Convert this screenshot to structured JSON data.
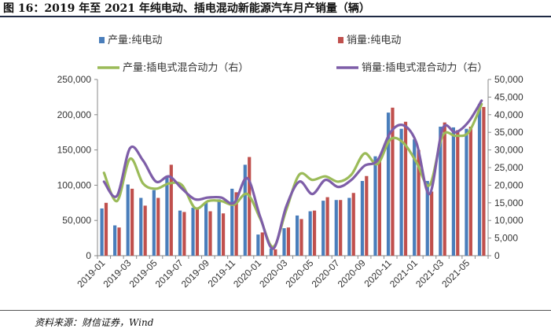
{
  "figure": {
    "title": "图 16：2019 年至 2021 年纯电动、插电混动新能源汽车月产销量（辆）",
    "source": "资料来源：财信证券，Wind"
  },
  "chart_data": {
    "type": "bar",
    "categories": [
      "2019-01",
      "2019-02",
      "2019-03",
      "2019-04",
      "2019-05",
      "2019-06",
      "2019-07",
      "2019-08",
      "2019-09",
      "2019-10",
      "2019-11",
      "2019-12",
      "2020-01",
      "2020-02",
      "2020-03",
      "2020-04",
      "2020-05",
      "2020-06",
      "2020-07",
      "2020-08",
      "2020-09",
      "2020-10",
      "2020-11",
      "2020-12",
      "2021-01",
      "2021-02",
      "2021-03",
      "2021-04",
      "2021-05",
      "2021-06"
    ],
    "x_tick_labels": [
      "2019-01",
      "2019-03",
      "2019-05",
      "2019-07",
      "2019-09",
      "2019-11",
      "2020-01",
      "2020-03",
      "2020-05",
      "2020-07",
      "2020-09",
      "2020-11",
      "2021-01",
      "2021-03",
      "2021-05"
    ],
    "series": [
      {
        "name": "产量:纯电动",
        "kind": "bar",
        "axis": "left",
        "color": "#4a7ebb",
        "values": [
          67000,
          43000,
          101000,
          82000,
          93000,
          113000,
          64000,
          68000,
          76000,
          80000,
          95000,
          129000,
          30000,
          10000,
          39000,
          57000,
          63000,
          78000,
          79000,
          82000,
          106000,
          141000,
          203000,
          180000,
          165000,
          106000,
          183000,
          182000,
          180000,
          215000
        ]
      },
      {
        "name": "销量:纯电动",
        "kind": "bar",
        "axis": "left",
        "color": "#c0504d",
        "values": [
          75000,
          40000,
          95000,
          71000,
          82000,
          129000,
          62000,
          68000,
          63000,
          60000,
          90000,
          140000,
          33000,
          9000,
          40000,
          52000,
          64000,
          83000,
          79000,
          89000,
          113000,
          135000,
          210000,
          190000,
          150000,
          91000,
          189000,
          178000,
          183000,
          211000
        ]
      },
      {
        "name": "产量:插电式混合动力（右）",
        "kind": "line",
        "axis": "right",
        "color": "#9bbb59",
        "values": [
          23500,
          15500,
          27500,
          20500,
          19000,
          20500,
          20000,
          13500,
          15500,
          15500,
          14500,
          17500,
          10500,
          2500,
          13000,
          23000,
          21500,
          22500,
          21000,
          23000,
          29000,
          26000,
          33000,
          32000,
          26500,
          20000,
          34000,
          34000,
          35000,
          43000
        ]
      },
      {
        "name": "销量:插电式混合动力（右）",
        "kind": "line",
        "axis": "right",
        "color": "#7e5ea8",
        "values": [
          21000,
          17000,
          30500,
          27000,
          21000,
          22500,
          19000,
          16000,
          16500,
          16500,
          15000,
          22000,
          11000,
          2000,
          14000,
          21000,
          17500,
          21500,
          19500,
          21500,
          25500,
          27000,
          35000,
          37000,
          32000,
          17500,
          36000,
          35000,
          38000,
          44000
        ]
      }
    ],
    "ylim_left": [
      0,
      250000
    ],
    "ylim_right": [
      0,
      50000
    ],
    "yticks_left": [
      "0",
      "50,000",
      "100,000",
      "150,000",
      "200,000",
      "250,000"
    ],
    "yticks_right": [
      "0",
      "5,000",
      "10,000",
      "15,000",
      "20,000",
      "25,000",
      "30,000",
      "35,000",
      "40,000",
      "45,000",
      "50,000"
    ],
    "legend_position": "top",
    "grid": false
  }
}
